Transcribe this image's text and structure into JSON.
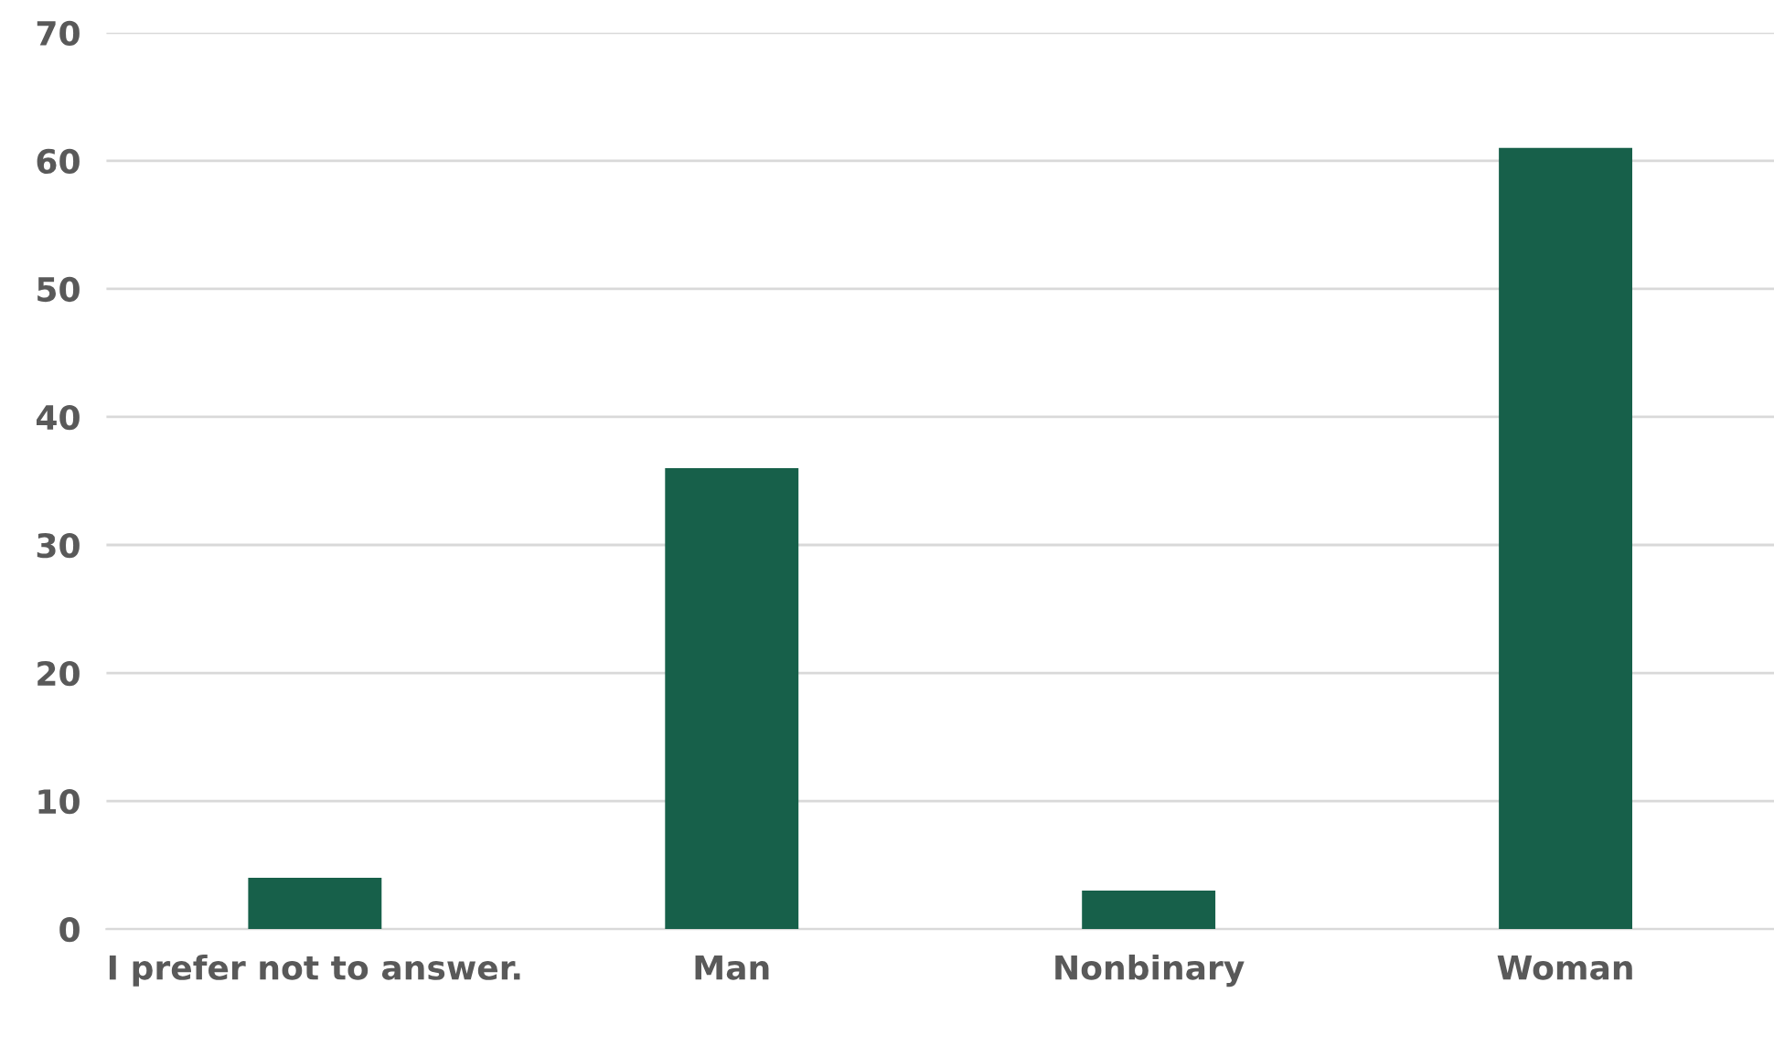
{
  "chart_data": {
    "type": "bar",
    "categories": [
      "I prefer not to answer.",
      "Man",
      "Nonbinary",
      "Woman"
    ],
    "values": [
      4,
      36,
      3,
      61
    ],
    "color": "#17604a",
    "ylim": [
      0,
      70
    ],
    "yticks": [
      0,
      10,
      20,
      30,
      40,
      50,
      60,
      70
    ],
    "grid": "y",
    "legend": false
  }
}
